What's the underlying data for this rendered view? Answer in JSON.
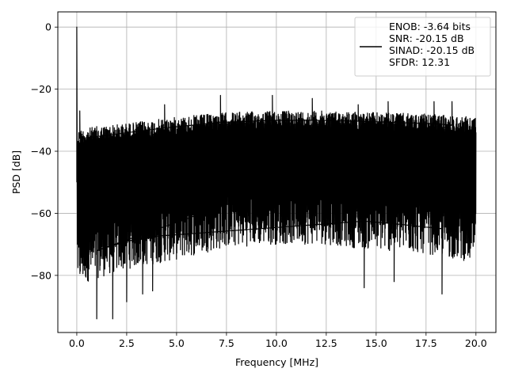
{
  "chart_data": {
    "type": "line",
    "title": "",
    "xlabel": "Frequency [MHz]",
    "ylabel": "PSD [dB]",
    "xlim": [
      -0.95,
      21.0
    ],
    "ylim": [
      -98.4,
      4.9
    ],
    "x_ticks": [
      0.0,
      2.5,
      5.0,
      7.5,
      10.0,
      12.5,
      15.0,
      17.5,
      20.0
    ],
    "x_tick_labels": [
      "0.0",
      "2.5",
      "5.0",
      "7.5",
      "10.0",
      "12.5",
      "15.0",
      "17.5",
      "20.0"
    ],
    "y_ticks": [
      0,
      -20,
      -40,
      -60,
      -80
    ],
    "y_tick_labels": [
      "0",
      "−20",
      "−40",
      "−60",
      "−80"
    ],
    "grid": true,
    "legend_position": "top-right",
    "series": [
      {
        "name": "ENOB: -3.64 bits\nSNR: -20.15 dB\nSINAD: -20.15 dB\nSFDR: 12.31",
        "color": "#000000",
        "description_points": {
          "x_range_mhz": [
            0.0,
            20.0
          ],
          "dc_peak": {
            "x": 0.0,
            "y": 0.0
          },
          "upper_envelope": [
            {
              "x": 0.1,
              "y": -33
            },
            {
              "x": 1.0,
              "y": -32
            },
            {
              "x": 2.5,
              "y": -31
            },
            {
              "x": 5.0,
              "y": -29
            },
            {
              "x": 7.5,
              "y": -27.5
            },
            {
              "x": 10.0,
              "y": -27
            },
            {
              "x": 12.5,
              "y": -27
            },
            {
              "x": 15.0,
              "y": -27.5
            },
            {
              "x": 17.5,
              "y": -28
            },
            {
              "x": 20.0,
              "y": -29
            }
          ],
          "spurs": [
            {
              "x": 0.15,
              "y": -27
            },
            {
              "x": 4.4,
              "y": -25
            },
            {
              "x": 7.2,
              "y": -22
            },
            {
              "x": 9.8,
              "y": -22
            },
            {
              "x": 11.8,
              "y": -23
            },
            {
              "x": 14.1,
              "y": -25
            },
            {
              "x": 15.6,
              "y": -24
            },
            {
              "x": 17.9,
              "y": -24
            },
            {
              "x": 18.8,
              "y": -24
            }
          ],
          "lower_envelope": [
            {
              "x": 0.1,
              "y": -79
            },
            {
              "x": 1.0,
              "y": -77
            },
            {
              "x": 2.5,
              "y": -74
            },
            {
              "x": 5.0,
              "y": -71
            },
            {
              "x": 7.5,
              "y": -67
            },
            {
              "x": 10.0,
              "y": -66
            },
            {
              "x": 12.5,
              "y": -66
            },
            {
              "x": 15.0,
              "y": -68
            },
            {
              "x": 17.5,
              "y": -69
            },
            {
              "x": 20.0,
              "y": -72
            }
          ],
          "deep_nulls": [
            {
              "x": 1.0,
              "y": -94
            },
            {
              "x": 1.8,
              "y": -94
            },
            {
              "x": 2.5,
              "y": -88.5
            },
            {
              "x": 3.3,
              "y": -86
            },
            {
              "x": 3.8,
              "y": -85
            },
            {
              "x": 14.4,
              "y": -84
            },
            {
              "x": 15.9,
              "y": -82
            },
            {
              "x": 18.3,
              "y": -86
            }
          ]
        }
      }
    ]
  }
}
